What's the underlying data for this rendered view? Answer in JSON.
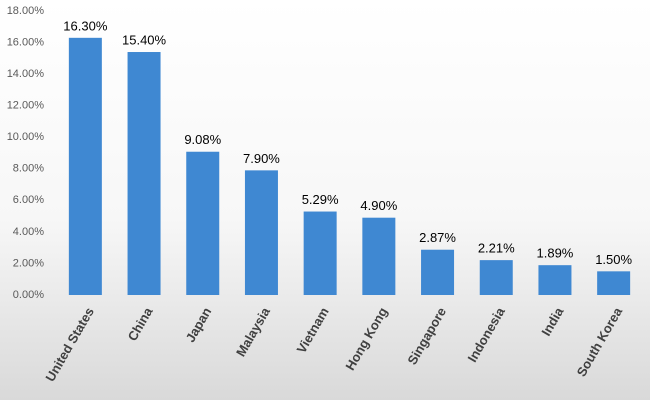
{
  "chart_data": {
    "type": "bar",
    "categories": [
      "United States",
      "China",
      "Japan",
      "Malaysia",
      "Vietnam",
      "Hong Kong",
      "Singapore",
      "Indonesia",
      "India",
      "South Korea"
    ],
    "values": [
      16.3,
      15.4,
      9.08,
      7.9,
      5.29,
      4.9,
      2.87,
      2.21,
      1.89,
      1.5
    ],
    "value_labels": [
      "16.30%",
      "15.40%",
      "9.08%",
      "7.90%",
      "5.29%",
      "4.90%",
      "2.87%",
      "2.21%",
      "1.89%",
      "1.50%"
    ],
    "color": "#3f88d2",
    "ylim": [
      0,
      18
    ],
    "yticks": [
      {
        "value": 0,
        "label": "0.00%"
      },
      {
        "value": 2,
        "label": "2.00%"
      },
      {
        "value": 4,
        "label": "4.00%"
      },
      {
        "value": 6,
        "label": "6.00%"
      },
      {
        "value": 8,
        "label": "8.00%"
      },
      {
        "value": 10,
        "label": "10.00%"
      },
      {
        "value": 12,
        "label": "12.00%"
      },
      {
        "value": 14,
        "label": "14.00%"
      },
      {
        "value": 16,
        "label": "16.00%"
      },
      {
        "value": 18,
        "label": "18.00%"
      }
    ],
    "grid": false
  }
}
